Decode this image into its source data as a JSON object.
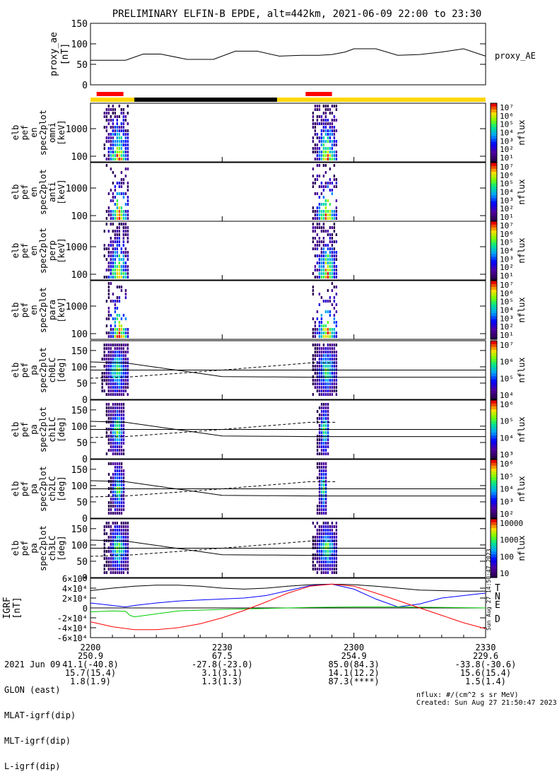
{
  "title": "PRELIMINARY ELFIN-B EPDE, alt=442km, 2021-06-09 22:00 to 23:30",
  "colors": {
    "ae_line": "#000000",
    "bar_red": "#ff0000",
    "bar_black": "#000000",
    "bar_yellow": "#ffd700",
    "grf_T": "#000000",
    "grf_N": "#0000ff",
    "grf_E": "#00cc00",
    "grf_D": "#ff0000"
  },
  "chart_data": [
    {
      "type": "line",
      "name": "proxy_ae",
      "ylabel_lines": [
        "proxy_ae",
        "[nT]"
      ],
      "legend": "proxy_AE",
      "ylim": [
        0,
        150
      ],
      "yticks": [
        "0",
        "50",
        "100",
        "150"
      ],
      "x_minutes": [
        0,
        5,
        8,
        12,
        16,
        22,
        28,
        33,
        38,
        43,
        48,
        52,
        55,
        58,
        60,
        65,
        70,
        75,
        80,
        85,
        90
      ],
      "values": [
        60,
        60,
        60,
        75,
        75,
        62,
        62,
        82,
        82,
        70,
        72,
        72,
        74,
        80,
        88,
        88,
        72,
        74,
        80,
        88,
        70
      ]
    },
    {
      "type": "bar",
      "name": "orbit_bar",
      "segments": [
        {
          "color": "red",
          "start_min": 1.4,
          "end_min": 7.5
        },
        {
          "color": "black",
          "start_min": 10.0,
          "end_min": 42.5
        },
        {
          "color": "red",
          "start_min": 49.0,
          "end_min": 55.0
        }
      ]
    },
    {
      "type": "heatmap",
      "name": "elb_pef_en_spec2plot_omni",
      "ylabel_lines": [
        "elb",
        "pef",
        "en",
        "spec2plot",
        "omni",
        "[keV]"
      ],
      "ylog": true,
      "yticks": [
        "100",
        "1000"
      ],
      "colorbar": {
        "label": "nflux",
        "ticks": [
          "10¹",
          "10²",
          "10³",
          "10⁴",
          "10⁵",
          "10⁶",
          "10⁷"
        ]
      },
      "bursts": [
        {
          "start_min": 3.0,
          "end_min": 9.0
        },
        {
          "start_min": 50.5,
          "end_min": 56.5
        }
      ]
    },
    {
      "type": "heatmap",
      "name": "elb_pef_en_spec2plot_anti",
      "ylabel_lines": [
        "elb",
        "pef",
        "en",
        "spec2plot",
        "anti",
        "[keV]"
      ],
      "ylog": true,
      "yticks": [
        "100",
        "1000"
      ],
      "colorbar": {
        "label": "nflux",
        "ticks": [
          "10¹",
          "10²",
          "10³",
          "10⁴",
          "10⁵",
          "10⁶",
          "10⁷"
        ]
      },
      "bursts": [
        {
          "start_min": 3.5,
          "end_min": 9.0
        },
        {
          "start_min": 50.5,
          "end_min": 56.5
        }
      ]
    },
    {
      "type": "heatmap",
      "name": "elb_pef_en_spec2plot_perp",
      "ylabel_lines": [
        "elb",
        "pef",
        "en",
        "spec2plot",
        "perp",
        "[keV]"
      ],
      "ylog": true,
      "yticks": [
        "100",
        "1000"
      ],
      "colorbar": {
        "label": "nflux",
        "ticks": [
          "10¹",
          "10²",
          "10³",
          "10⁴",
          "10⁵",
          "10⁶",
          "10⁷"
        ]
      },
      "bursts": [
        {
          "start_min": 3.0,
          "end_min": 9.0
        },
        {
          "start_min": 50.5,
          "end_min": 56.5
        }
      ]
    },
    {
      "type": "heatmap",
      "name": "elb_pef_en_spec2plot_para",
      "ylabel_lines": [
        "elb",
        "pef",
        "en",
        "spec2plot",
        "para",
        "[keV]"
      ],
      "ylog": true,
      "yticks": [
        "100",
        "1000"
      ],
      "colorbar": {
        "label": "nflux",
        "ticks": [
          "10¹",
          "10²",
          "10³",
          "10⁴",
          "10⁵",
          "10⁶",
          "10⁷"
        ]
      },
      "bursts": [
        {
          "start_min": 3.5,
          "end_min": 9.0
        },
        {
          "start_min": 50.5,
          "end_min": 56.5
        }
      ]
    },
    {
      "type": "heatmap",
      "name": "elb_pef_pa_spec2plot_ch0LC",
      "ylabel_lines": [
        "elb",
        "pef",
        "pa",
        "spec2plot",
        "ch0LC",
        "[deg]"
      ],
      "ylim": [
        0,
        180
      ],
      "yticks": [
        "0",
        "50",
        "100",
        "150"
      ],
      "colorbar": {
        "label": "nflux",
        "ticks": [
          "10⁴",
          "10⁵",
          "10⁶",
          "10⁷"
        ]
      },
      "bursts": [
        {
          "start_min": 2.5,
          "end_min": 9.0
        },
        {
          "start_min": 50.5,
          "end_min": 56.5
        }
      ],
      "lc_solid": {
        "x_minutes": [
          0,
          8,
          30,
          50,
          56
        ],
        "values": [
          115,
          112,
          70,
          68,
          68
        ]
      },
      "lc_dashed": {
        "x_minutes": [
          0,
          8,
          30,
          50,
          56
        ],
        "values": [
          65,
          68,
          90,
          112,
          112
        ]
      },
      "hline": 90
    },
    {
      "type": "heatmap",
      "name": "elb_pef_pa_spec2plot_ch1LC",
      "ylabel_lines": [
        "elb",
        "pef",
        "pa",
        "spec2plot",
        "ch1LC",
        "[deg]"
      ],
      "ylim": [
        0,
        180
      ],
      "yticks": [
        "0",
        "50",
        "100",
        "150"
      ],
      "colorbar": {
        "label": "nflux",
        "ticks": [
          "10³",
          "10⁴",
          "10⁵",
          "10⁶"
        ]
      },
      "bursts": [
        {
          "start_min": 3.5,
          "end_min": 8.0
        },
        {
          "start_min": 51.5,
          "end_min": 54.5
        }
      ],
      "lc_solid": {
        "x_minutes": [
          0,
          8,
          30,
          50,
          56
        ],
        "values": [
          115,
          112,
          70,
          68,
          68
        ]
      },
      "lc_dashed": {
        "x_minutes": [
          0,
          8,
          30,
          50,
          56
        ],
        "values": [
          65,
          68,
          90,
          112,
          112
        ]
      },
      "hline": 90
    },
    {
      "type": "heatmap",
      "name": "elb_pef_pa_spec2plot_ch2LC",
      "ylabel_lines": [
        "elb",
        "pef",
        "pa",
        "spec2plot",
        "ch2LC",
        "[deg]"
      ],
      "ylim": [
        0,
        180
      ],
      "yticks": [
        "0",
        "50",
        "100",
        "150"
      ],
      "colorbar": {
        "label": "nflux",
        "ticks": [
          "10²",
          "10³",
          "10⁴",
          "10⁵",
          "10⁶"
        ]
      },
      "bursts": [
        {
          "start_min": 4.0,
          "end_min": 8.0
        },
        {
          "start_min": 51.5,
          "end_min": 54.0
        }
      ],
      "lc_solid": {
        "x_minutes": [
          0,
          8,
          30,
          50,
          56
        ],
        "values": [
          115,
          112,
          70,
          68,
          68
        ]
      },
      "lc_dashed": {
        "x_minutes": [
          0,
          8,
          30,
          50,
          56
        ],
        "values": [
          65,
          68,
          90,
          112,
          112
        ]
      },
      "hline": 90
    },
    {
      "type": "heatmap",
      "name": "elb_pef_pa_spec2plot_ch3LC",
      "ylabel_lines": [
        "elb",
        "pef",
        "pa",
        "spec2plot",
        "ch3LC",
        "[deg]"
      ],
      "ylim": [
        0,
        180
      ],
      "yticks": [
        "0",
        "50",
        "100",
        "150"
      ],
      "colorbar": {
        "label": "nflux",
        "ticks": [
          "10",
          "100",
          "1000",
          "10000"
        ]
      },
      "bursts": [
        {
          "start_min": 3.0,
          "end_min": 9.0
        },
        {
          "start_min": 50.5,
          "end_min": 56.5
        }
      ],
      "lc_solid": {
        "x_minutes": [
          0,
          8,
          30,
          50,
          56
        ],
        "values": [
          115,
          112,
          70,
          68,
          68
        ]
      },
      "lc_dashed": {
        "x_minutes": [
          0,
          8,
          30,
          50,
          56
        ],
        "values": [
          65,
          68,
          90,
          112,
          112
        ]
      },
      "hline": 90
    },
    {
      "type": "line",
      "name": "IGRF",
      "ylabel_lines": [
        "IGRF",
        "[nT]"
      ],
      "ylim": [
        -60000,
        60000
      ],
      "yticks": [
        "-6×10⁴",
        "-4×10⁴",
        "-2×10⁴",
        "0",
        "2×10⁴",
        "4×10⁴",
        "6×10⁴"
      ],
      "legend": [
        "T",
        "N",
        "E",
        "D"
      ],
      "series": [
        {
          "name": "T",
          "x_minutes": [
            0,
            5,
            10,
            15,
            20,
            25,
            30,
            35,
            40,
            45,
            50,
            55,
            60,
            65,
            70,
            75,
            80,
            85,
            90
          ],
          "values": [
            35000,
            40000,
            44000,
            46000,
            46000,
            44000,
            40000,
            38000,
            40000,
            44000,
            47000,
            48000,
            47000,
            44000,
            40000,
            36000,
            35000,
            34000,
            34000
          ]
        },
        {
          "name": "N",
          "x_minutes": [
            0,
            5,
            8,
            10,
            15,
            20,
            25,
            30,
            35,
            40,
            45,
            50,
            55,
            60,
            65,
            70,
            75,
            80,
            85,
            90
          ],
          "values": [
            10000,
            5000,
            2000,
            5000,
            10000,
            14000,
            16000,
            18000,
            20000,
            25000,
            35000,
            45000,
            48000,
            38000,
            18000,
            2000,
            8000,
            20000,
            25000,
            30000
          ]
        },
        {
          "name": "E",
          "x_minutes": [
            0,
            5,
            8,
            9,
            10,
            15,
            20,
            30,
            40,
            50,
            60,
            70,
            80,
            90
          ],
          "values": [
            -8000,
            -6000,
            -7000,
            -15000,
            -18000,
            -12000,
            -6000,
            -3000,
            -1000,
            1000,
            2000,
            2000,
            1000,
            0
          ]
        },
        {
          "name": "D",
          "x_minutes": [
            0,
            5,
            10,
            15,
            20,
            25,
            30,
            35,
            40,
            45,
            50,
            55,
            60,
            65,
            70,
            75,
            80,
            85,
            90
          ],
          "values": [
            -28000,
            -38000,
            -44000,
            -44000,
            -40000,
            -32000,
            -20000,
            -5000,
            12000,
            30000,
            44000,
            48000,
            44000,
            30000,
            15000,
            0,
            -15000,
            -30000,
            -42000
          ]
        }
      ]
    }
  ],
  "xaxis": {
    "row_labels": [
      "2021 Jun 09",
      "GLON (east)",
      "MLAT-igrf(dip)",
      "MLT-igrf(dip)",
      "L-igrf(dip)"
    ],
    "columns": [
      {
        "minute": 0,
        "values": [
          "2200",
          "250.9",
          "41.1(-40.8)",
          "15.7(15.4)",
          "1.8(1.9)"
        ]
      },
      {
        "minute": 30,
        "values": [
          "2230",
          "67.5",
          "-27.8(-23.0)",
          "3.1(3.1)",
          "1.3(1.3)"
        ]
      },
      {
        "minute": 60,
        "values": [
          "2300",
          "254.9",
          "85.0(84.3)",
          "14.1(12.2)",
          "87.3(****)"
        ]
      },
      {
        "minute": 90,
        "values": [
          "2330",
          "229.6",
          "-33.8(-30.6)",
          "15.6(15.4)",
          "1.5(1.4)"
        ]
      }
    ]
  },
  "side_stamp": "Sun Aug 27 14:50:47 2023",
  "footer": {
    "units": "nflux: #/(cm^2 s sr MeV)",
    "created": "Created: Sun Aug 27 21:50:47 2023"
  }
}
